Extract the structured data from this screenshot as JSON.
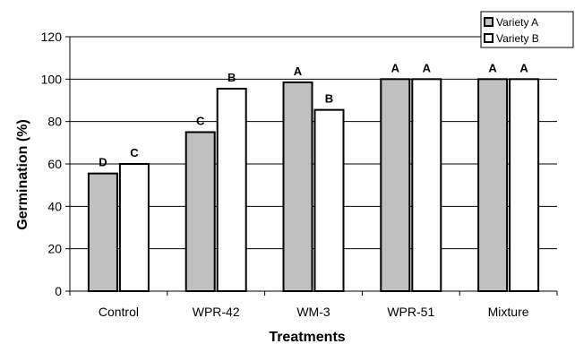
{
  "chart_data": {
    "type": "bar",
    "xlabel": "Treatments",
    "ylabel": "Germination (%)",
    "ylim": [
      0,
      120
    ],
    "yticks": [
      0,
      20,
      40,
      60,
      80,
      100,
      120
    ],
    "grid": true,
    "legend_position": "top-right",
    "categories": [
      "Control",
      "WPR-42",
      "WM-3",
      "WPR-51",
      "Mixture"
    ],
    "series": [
      {
        "name": "Variety A",
        "color": "#c0c0c0",
        "values": [
          55.5,
          75,
          98.5,
          100,
          100
        ],
        "labels": [
          "D",
          "C",
          "A",
          "A",
          "A"
        ]
      },
      {
        "name": "Variety B",
        "color": "#ffffff",
        "values": [
          60,
          95.5,
          85.5,
          100,
          100
        ],
        "labels": [
          "C",
          "B",
          "B",
          "A",
          "A"
        ]
      }
    ]
  }
}
